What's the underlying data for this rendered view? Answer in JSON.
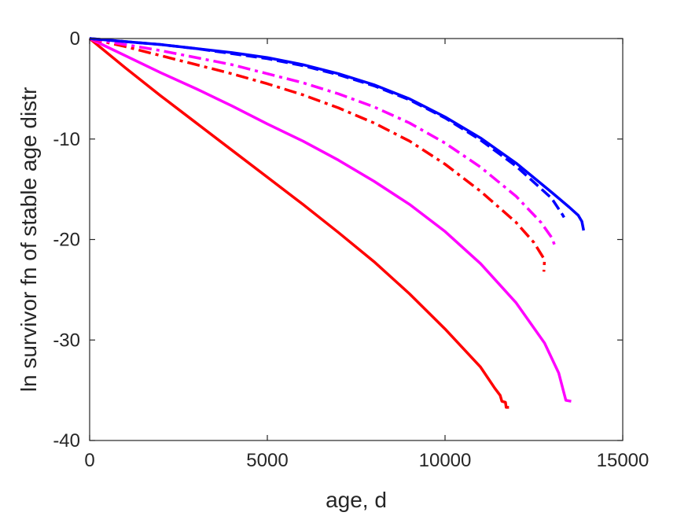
{
  "chart_data": {
    "type": "line",
    "title": "",
    "xlabel": "age, d",
    "ylabel": "ln survivor fn of stable age distr",
    "xlim": [
      0,
      15000
    ],
    "ylim": [
      -40,
      0
    ],
    "xticks": [
      0,
      5000,
      10000,
      15000
    ],
    "yticks": [
      -40,
      -30,
      -20,
      -10,
      0
    ],
    "xtick_labels": [
      "0",
      "5000",
      "10000",
      "15000"
    ],
    "ytick_labels": [
      "-40",
      "-30",
      "-20",
      "-10",
      "0"
    ],
    "grid": false,
    "legend": "none",
    "series": [
      {
        "color": "#ff0000",
        "style": "solid",
        "points": [
          [
            0,
            0
          ],
          [
            1000,
            -2.9
          ],
          [
            2000,
            -5.7
          ],
          [
            3000,
            -8.4
          ],
          [
            4000,
            -11.1
          ],
          [
            5000,
            -13.8
          ],
          [
            6000,
            -16.5
          ],
          [
            7000,
            -19.3
          ],
          [
            8000,
            -22.2
          ],
          [
            9000,
            -25.4
          ],
          [
            10000,
            -28.9
          ],
          [
            11000,
            -32.7
          ],
          [
            11400,
            -34.8
          ],
          [
            11550,
            -35.5
          ],
          [
            11600,
            -36.1
          ],
          [
            11700,
            -36.2
          ],
          [
            11720,
            -36.7
          ],
          [
            11800,
            -36.7
          ]
        ]
      },
      {
        "color": "#ff00ff",
        "style": "solid",
        "points": [
          [
            0,
            0
          ],
          [
            1000,
            -1.7
          ],
          [
            2000,
            -3.4
          ],
          [
            3000,
            -5.0
          ],
          [
            4000,
            -6.7
          ],
          [
            5000,
            -8.5
          ],
          [
            6000,
            -10.2
          ],
          [
            7000,
            -12.1
          ],
          [
            8000,
            -14.2
          ],
          [
            9000,
            -16.5
          ],
          [
            10000,
            -19.2
          ],
          [
            11000,
            -22.4
          ],
          [
            12000,
            -26.3
          ],
          [
            12800,
            -30.3
          ],
          [
            13200,
            -33.3
          ],
          [
            13400,
            -36.0
          ],
          [
            13550,
            -36.1
          ]
        ]
      },
      {
        "color": "#ff0000",
        "style": "dashdot",
        "points": [
          [
            0,
            0
          ],
          [
            1000,
            -0.8
          ],
          [
            2000,
            -1.7
          ],
          [
            3000,
            -2.6
          ],
          [
            4000,
            -3.5
          ],
          [
            5000,
            -4.5
          ],
          [
            6000,
            -5.6
          ],
          [
            7000,
            -6.9
          ],
          [
            8000,
            -8.4
          ],
          [
            9000,
            -10.2
          ],
          [
            10000,
            -12.5
          ],
          [
            11000,
            -15.2
          ],
          [
            12000,
            -18.3
          ],
          [
            12500,
            -20.3
          ],
          [
            12800,
            -22.0
          ],
          [
            12780,
            -23.2
          ]
        ]
      },
      {
        "color": "#ff00ff",
        "style": "dashdot",
        "points": [
          [
            0,
            0
          ],
          [
            1000,
            -0.6
          ],
          [
            2000,
            -1.2
          ],
          [
            3000,
            -1.9
          ],
          [
            4000,
            -2.6
          ],
          [
            5000,
            -3.5
          ],
          [
            6000,
            -4.4
          ],
          [
            7000,
            -5.5
          ],
          [
            8000,
            -6.8
          ],
          [
            9000,
            -8.4
          ],
          [
            10000,
            -10.4
          ],
          [
            11000,
            -12.8
          ],
          [
            12000,
            -15.7
          ],
          [
            12700,
            -18.3
          ],
          [
            13000,
            -19.8
          ],
          [
            13100,
            -20.7
          ]
        ]
      },
      {
        "color": "#0000ff",
        "style": "dashed",
        "points": [
          [
            0,
            0
          ],
          [
            1000,
            -0.3
          ],
          [
            2000,
            -0.6
          ],
          [
            3000,
            -1.0
          ],
          [
            4000,
            -1.5
          ],
          [
            5000,
            -2.0
          ],
          [
            6000,
            -2.7
          ],
          [
            7000,
            -3.6
          ],
          [
            8000,
            -4.7
          ],
          [
            9000,
            -6.1
          ],
          [
            10000,
            -7.9
          ],
          [
            11000,
            -10.1
          ],
          [
            12000,
            -12.7
          ],
          [
            13000,
            -15.9
          ],
          [
            13300,
            -17.5
          ],
          [
            13350,
            -17.8
          ]
        ]
      },
      {
        "color": "#0000ff",
        "style": "solid",
        "points": [
          [
            0,
            0
          ],
          [
            1000,
            -0.3
          ],
          [
            2000,
            -0.6
          ],
          [
            3000,
            -1.0
          ],
          [
            4000,
            -1.4
          ],
          [
            5000,
            -1.9
          ],
          [
            6000,
            -2.6
          ],
          [
            7000,
            -3.5
          ],
          [
            8000,
            -4.6
          ],
          [
            9000,
            -6.0
          ],
          [
            10000,
            -7.8
          ],
          [
            11000,
            -9.9
          ],
          [
            12000,
            -12.4
          ],
          [
            13000,
            -15.3
          ],
          [
            13500,
            -16.8
          ],
          [
            13750,
            -17.6
          ],
          [
            13850,
            -18.2
          ],
          [
            13900,
            -19.1
          ]
        ]
      }
    ]
  }
}
